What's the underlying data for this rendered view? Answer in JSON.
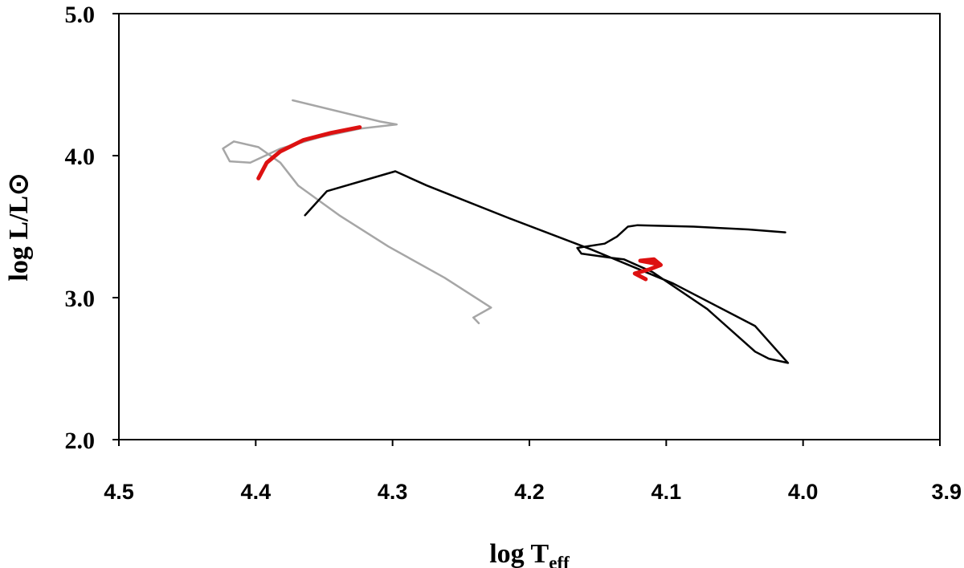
{
  "chart_data": {
    "type": "line",
    "xlabel": "log T",
    "xlabel_subscript": "eff",
    "ylabel": "log L/L⊙",
    "xlim": [
      4.5,
      3.9
    ],
    "x_reversed": true,
    "ylim": [
      2.0,
      5.0
    ],
    "x_ticks": [
      "4.5",
      "4.4",
      "4.3",
      "4.2",
      "4.1",
      "4.0",
      "3.9"
    ],
    "y_ticks": [
      "2.0",
      "3.0",
      "4.0",
      "5.0"
    ],
    "grid": false,
    "legend": "none",
    "series": [
      {
        "color": "#a6a6a6",
        "x": [
          4.237,
          4.241,
          4.228,
          4.262,
          4.303,
          4.339,
          4.369,
          4.382,
          4.398,
          4.416,
          4.424,
          4.419,
          4.404,
          4.382,
          4.353,
          4.324,
          4.297,
          4.309,
          4.373
        ],
        "y": [
          2.82,
          2.86,
          2.93,
          3.14,
          3.36,
          3.58,
          3.79,
          3.95,
          4.06,
          4.1,
          4.05,
          3.96,
          3.95,
          4.05,
          4.13,
          4.19,
          4.22,
          4.24,
          4.39
        ]
      },
      {
        "color": "#000000",
        "x": [
          4.364,
          4.348,
          4.298,
          4.275,
          4.215,
          4.155,
          4.095,
          4.035,
          4.011,
          4.025,
          4.035,
          4.07,
          4.11,
          4.131,
          4.14,
          4.162,
          4.165,
          4.145,
          4.136,
          4.128,
          4.121,
          4.08,
          4.04,
          4.013
        ],
        "y": [
          3.58,
          3.75,
          3.89,
          3.79,
          3.56,
          3.34,
          3.1,
          2.8,
          2.54,
          2.57,
          2.62,
          2.92,
          3.18,
          3.27,
          3.28,
          3.31,
          3.35,
          3.38,
          3.43,
          3.5,
          3.51,
          3.5,
          3.48,
          3.46
        ]
      },
      {
        "color": "#dd1111",
        "x": [
          4.324,
          4.345,
          4.365,
          4.382,
          4.392,
          4.398
        ],
        "y": [
          4.2,
          4.16,
          4.11,
          4.03,
          3.95,
          3.84
        ]
      },
      {
        "color": "#dd1111",
        "x": [
          4.115,
          4.123,
          4.112,
          4.104,
          4.109,
          4.119,
          4.108
        ],
        "y": [
          3.13,
          3.17,
          3.2,
          3.23,
          3.27,
          3.26,
          3.24
        ]
      }
    ]
  }
}
